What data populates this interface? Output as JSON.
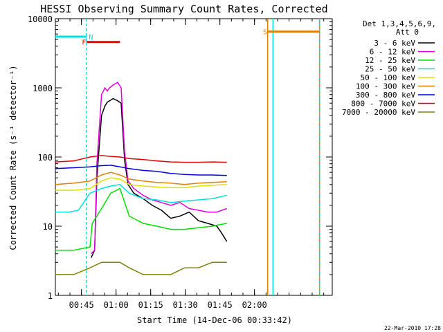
{
  "chart_data": {
    "type": "line",
    "title": "HESSI Observing Summary Count Rates, Corrected",
    "xlabel": "Start Time (14-Dec-06 00:33:42)",
    "ylabel": "Corrected Count Rate (s⁻¹ detector⁻¹)",
    "yscale": "log",
    "ylim": [
      1,
      10000
    ],
    "xlim": [
      0,
      120
    ],
    "x_units": "minutes since 00:33:42",
    "grid": false,
    "y_ticks": [
      {
        "value": 1,
        "label": "1"
      },
      {
        "value": 10,
        "label": "10"
      },
      {
        "value": 100,
        "label": "100"
      },
      {
        "value": 1000,
        "label": "1000"
      },
      {
        "value": 10000,
        "label": "10000"
      }
    ],
    "x_ticks": [
      {
        "value": 11.3,
        "label": "00:45"
      },
      {
        "value": 26.3,
        "label": "01:00"
      },
      {
        "value": 41.3,
        "label": "01:15"
      },
      {
        "value": 56.3,
        "label": "01:30"
      },
      {
        "value": 71.3,
        "label": "01:45"
      },
      {
        "value": 86.3,
        "label": "02:00"
      }
    ],
    "legend_header": [
      "Det 1,3,4,5,6,9,",
      "Att 0"
    ],
    "legend_position": "right",
    "series": [
      {
        "name": "3 - 6 keV",
        "color": "#000000",
        "x": [
          15.5,
          17,
          18,
          20,
          21.5,
          22.5,
          23.5,
          25,
          27,
          28.5,
          30,
          31.5,
          34,
          38,
          42,
          46,
          50,
          54,
          58,
          62,
          66,
          70,
          72,
          74.3
        ],
        "y": [
          3.5,
          4.5,
          50,
          400,
          550,
          620,
          650,
          700,
          650,
          600,
          90,
          40,
          30,
          25,
          20,
          17,
          13,
          14,
          16,
          12,
          11,
          10,
          8,
          6
        ]
      },
      {
        "name": "6 - 12 keV",
        "color": "#e000e0",
        "x": [
          15.5,
          17,
          18,
          20,
          21.5,
          22.5,
          23.5,
          25,
          27,
          28.5,
          30,
          31.5,
          34,
          38,
          42,
          46,
          50,
          54,
          58,
          62,
          66,
          70,
          74.3
        ],
        "y": [
          4,
          4.5,
          80,
          800,
          1000,
          900,
          1000,
          1100,
          1200,
          1000,
          120,
          45,
          35,
          28,
          24,
          22,
          20,
          22,
          18,
          17,
          16,
          16,
          18
        ]
      },
      {
        "name": "12 - 25 keV",
        "color": "#00e000",
        "x": [
          0,
          8,
          15,
          16,
          20,
          24,
          28,
          32,
          38,
          44,
          50,
          56,
          62,
          68,
          74.3
        ],
        "y": [
          4.5,
          4.5,
          5,
          11,
          18,
          30,
          35,
          14,
          11,
          10,
          9,
          9,
          9.5,
          10,
          11
        ]
      },
      {
        "name": "25 - 50 keV",
        "color": "#00e0e0",
        "x": [
          0,
          6,
          10,
          15,
          20,
          24,
          28,
          32,
          38,
          44,
          50,
          56,
          62,
          68,
          74.3
        ],
        "y": [
          16,
          16,
          17,
          30,
          35,
          38,
          40,
          30,
          25,
          24,
          22,
          23,
          24,
          25,
          28
        ]
      },
      {
        "name": "50 - 100 keV",
        "color": "#e0e000",
        "x": [
          0,
          8,
          15,
          20,
          24,
          28,
          32,
          38,
          44,
          50,
          56,
          62,
          68,
          74.3
        ],
        "y": [
          33,
          33,
          35,
          45,
          50,
          48,
          40,
          38,
          37,
          36,
          36,
          38,
          39,
          40
        ]
      },
      {
        "name": "100 - 300 keV",
        "color": "#e08000",
        "x": [
          0,
          8,
          15,
          20,
          24,
          28,
          32,
          38,
          44,
          50,
          56,
          62,
          68,
          74.3
        ],
        "y": [
          40,
          42,
          45,
          55,
          60,
          55,
          48,
          45,
          43,
          42,
          40,
          42,
          43,
          44
        ]
      },
      {
        "name": "300 - 800 keV",
        "color": "#0000e0",
        "x": [
          0,
          8,
          15,
          20,
          24,
          28,
          32,
          38,
          44,
          50,
          56,
          62,
          68,
          74.3
        ],
        "y": [
          68,
          70,
          72,
          75,
          76,
          72,
          68,
          64,
          62,
          58,
          56,
          55,
          55,
          54
        ]
      },
      {
        "name": "800 - 7000 keV",
        "color": "#e00000",
        "x": [
          0,
          8,
          15,
          20,
          24,
          28,
          32,
          38,
          44,
          50,
          56,
          62,
          68,
          74.3
        ],
        "y": [
          85,
          88,
          100,
          105,
          102,
          100,
          95,
          92,
          88,
          85,
          84,
          84,
          85,
          84
        ]
      },
      {
        "name": "7000 - 20000 keV",
        "color": "#808000",
        "x": [
          0,
          8,
          15,
          20,
          24,
          28,
          32,
          38,
          44,
          50,
          56,
          62,
          68,
          74.3
        ],
        "y": [
          2,
          2,
          2.5,
          3,
          3,
          3,
          2.5,
          2,
          2,
          2,
          2.5,
          2.5,
          3,
          3
        ]
      }
    ],
    "flags": [
      {
        "label": "F",
        "color": "#e00000",
        "x_start": 13.5,
        "x_end": 28.0,
        "y": 4600,
        "label_x": 11.5
      },
      {
        "label": "N",
        "color": "#00e0e0",
        "x_start": 0,
        "x_end": 13.5,
        "y": 5500,
        "label_x": 14.5
      },
      {
        "label": "S",
        "color": "#e08000",
        "x_start": 92.0,
        "x_end": 114.5,
        "y": 6500,
        "label_x": 90.0
      }
    ],
    "vertical_lines": [
      {
        "x": 13.5,
        "color": "#00e0e0",
        "style": "dashed"
      },
      {
        "x": 92.0,
        "color": "#e08000",
        "style": "solid"
      },
      {
        "x": 94.3,
        "color": "#00e0e0",
        "style": "solid"
      },
      {
        "x": 114.5,
        "color": "#e08000",
        "style": "solid"
      },
      {
        "x": 114.5,
        "color": "#00e0e0",
        "style": "dashed"
      }
    ],
    "footer_date": "22-Mar-2010 17:28"
  }
}
